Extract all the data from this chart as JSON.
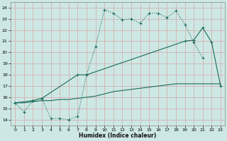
{
  "title": "",
  "xlabel": "Humidex (Indice chaleur)",
  "bg_color": "#cde8e4",
  "grid_color": "#d4b0b0",
  "line_color": "#1a6b5a",
  "c1x": [
    0,
    1,
    2,
    3,
    4,
    5,
    6,
    7,
    8,
    9,
    10,
    11,
    12,
    13,
    14,
    15,
    16,
    17,
    18,
    19,
    20,
    21
  ],
  "c1y": [
    15.5,
    14.7,
    15.7,
    15.9,
    14.1,
    14.1,
    14.0,
    14.3,
    18.0,
    20.5,
    23.8,
    23.5,
    22.9,
    23.0,
    22.6,
    23.5,
    23.5,
    23.1,
    23.7,
    22.5,
    20.9,
    19.5
  ],
  "c2x": [
    0,
    2,
    3,
    7,
    8,
    19,
    20,
    21,
    22,
    23
  ],
  "c2y": [
    15.5,
    15.7,
    15.9,
    18.0,
    18.0,
    21.0,
    21.1,
    22.2,
    20.9,
    17.0
  ],
  "c3x": [
    0,
    1,
    2,
    3,
    4,
    5,
    6,
    7,
    8,
    9,
    10,
    11,
    12,
    13,
    14,
    15,
    16,
    17,
    18,
    19,
    20,
    21,
    22,
    23
  ],
  "c3y": [
    15.5,
    15.5,
    15.6,
    15.7,
    15.7,
    15.8,
    15.8,
    15.9,
    16.0,
    16.1,
    16.3,
    16.5,
    16.6,
    16.7,
    16.8,
    16.9,
    17.0,
    17.1,
    17.2,
    17.2,
    17.2,
    17.2,
    17.2,
    17.2
  ]
}
